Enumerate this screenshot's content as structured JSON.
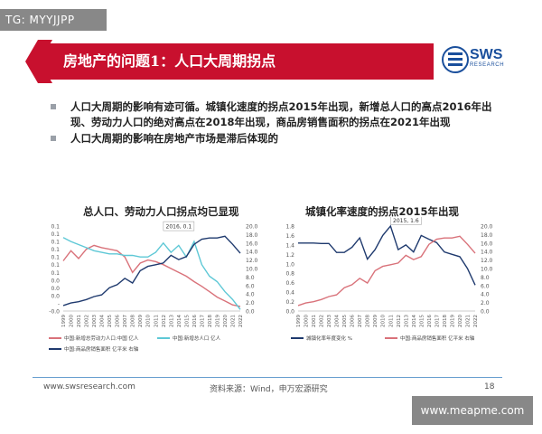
{
  "watermark_top": "TG: MYYJJPP",
  "watermark_bottom": "www.meapme.com",
  "header": {
    "title": "房地产的问题1：人口大周期拐点"
  },
  "logo": {
    "name": "SWS",
    "subtitle": "RESEARCH"
  },
  "bullets": [
    "人口大周期的影响有迹可循。城镇化速度的拐点2015年出现，新增总人口的高点2016年出现、劳动力人口的绝对高点在2018年出现，商品房销售面积的拐点在2021年出现",
    "人口大周期的影响在房地产市场是滞后体现的"
  ],
  "footer": {
    "url": "www.swsresearch.com",
    "source": "资料来源：Wind，申万宏源研究",
    "page": "18"
  },
  "colors": {
    "brand_red": "#c8102e",
    "brand_blue": "#1a4f9c",
    "series_red": "#d9727a",
    "series_cyan": "#5ec8d6",
    "series_navy": "#1f3a6e"
  },
  "chart_data": [
    {
      "type": "line",
      "title": "总人口、劳动力人口拐点均已显现",
      "x": [
        "1999",
        "2000",
        "2001",
        "2002",
        "2003",
        "2004",
        "2005",
        "2006",
        "2007",
        "2008",
        "2009",
        "2010",
        "2011",
        "2012",
        "2013",
        "2014",
        "2015",
        "2016",
        "2017",
        "2018",
        "2019",
        "2020",
        "2021",
        "2022"
      ],
      "y_left_ticks": [
        "0.1",
        "0.1",
        "0.1",
        "0.1",
        "0.1",
        "0.1",
        "0.1",
        "0.0",
        "0.0",
        "0.0",
        "-",
        "-0.0"
      ],
      "y_left_range": [
        -0.01,
        0.1
      ],
      "y_right_ticks": [
        "20.0",
        "18.0",
        "16.0",
        "14.0",
        "12.0",
        "10.0",
        "8.0",
        "6.0",
        "4.0",
        "2.0",
        "0.0"
      ],
      "y_right_range": [
        0,
        20
      ],
      "annotation": "2016, 0.1",
      "series": [
        {
          "name": "中国:新增总劳动力人口:中国 亿人",
          "axis": "left",
          "color": "#d9727a",
          "values": [
            0.055,
            0.068,
            0.058,
            0.07,
            0.075,
            0.072,
            0.07,
            0.068,
            0.06,
            0.04,
            0.052,
            0.056,
            0.054,
            0.05,
            0.045,
            0.04,
            0.035,
            0.028,
            0.022,
            0.015,
            0.008,
            0.003,
            -0.002,
            -0.004
          ]
        },
        {
          "name": "中国:新增总人口 亿人",
          "axis": "left",
          "color": "#5ec8d6",
          "values": [
            0.085,
            0.08,
            0.076,
            0.072,
            0.068,
            0.066,
            0.064,
            0.064,
            0.062,
            0.062,
            0.06,
            0.06,
            0.066,
            0.078,
            0.066,
            0.075,
            0.06,
            0.08,
            0.05,
            0.035,
            0.028,
            0.015,
            0.005,
            -0.008
          ]
        },
        {
          "name": "中国:商品房销售面积 亿平米 右轴",
          "axis": "right",
          "color": "#1f3a6e",
          "values": [
            1.3,
            1.9,
            2.2,
            2.7,
            3.4,
            3.8,
            5.5,
            6.2,
            7.7,
            6.6,
            9.5,
            10.5,
            10.9,
            11.3,
            13.1,
            12.1,
            12.8,
            15.7,
            16.9,
            17.2,
            17.2,
            17.6,
            15.7,
            13.6
          ]
        }
      ]
    },
    {
      "type": "line",
      "title": "城镇化率速度的拐点2015年出现",
      "x": [
        "1999",
        "2000",
        "2001",
        "2002",
        "2003",
        "2004",
        "2005",
        "2006",
        "2007",
        "2008",
        "2009",
        "2010",
        "2011",
        "2012",
        "2013",
        "2014",
        "2015",
        "2016",
        "2017",
        "2018",
        "2019",
        "2020",
        "2021",
        "2022"
      ],
      "y_left_ticks": [
        "1.8",
        "1.6",
        "1.4",
        "1.2",
        "1.0",
        "0.8",
        "0.6",
        "0.4",
        "0.2",
        "0.0"
      ],
      "y_left_range": [
        0,
        1.8
      ],
      "y_right_ticks": [
        "20.0",
        "18.0",
        "16.0",
        "14.0",
        "12.0",
        "10.0",
        "8.0",
        "6.0",
        "4.0",
        "2.0",
        "0.0"
      ],
      "y_right_range": [
        0,
        20
      ],
      "annotation": "2015, 1.6",
      "series": [
        {
          "name": "城镇化率年度变化 %",
          "axis": "left",
          "color": "#1f3a6e",
          "values": [
            1.44,
            1.44,
            1.44,
            1.43,
            1.43,
            1.24,
            1.24,
            1.35,
            1.55,
            1.1,
            1.3,
            1.6,
            1.8,
            1.3,
            1.4,
            1.25,
            1.6,
            1.52,
            1.45,
            1.25,
            1.2,
            1.15,
            0.9,
            0.55
          ]
        },
        {
          "name": "中国:商品房销售面积 亿平米 右轴",
          "axis": "right",
          "color": "#d9727a",
          "values": [
            1.3,
            1.9,
            2.2,
            2.7,
            3.4,
            3.8,
            5.5,
            6.2,
            7.7,
            6.6,
            9.5,
            10.5,
            10.9,
            11.3,
            13.1,
            12.1,
            12.8,
            15.7,
            16.9,
            17.2,
            17.2,
            17.6,
            15.7,
            13.6
          ]
        }
      ]
    }
  ]
}
